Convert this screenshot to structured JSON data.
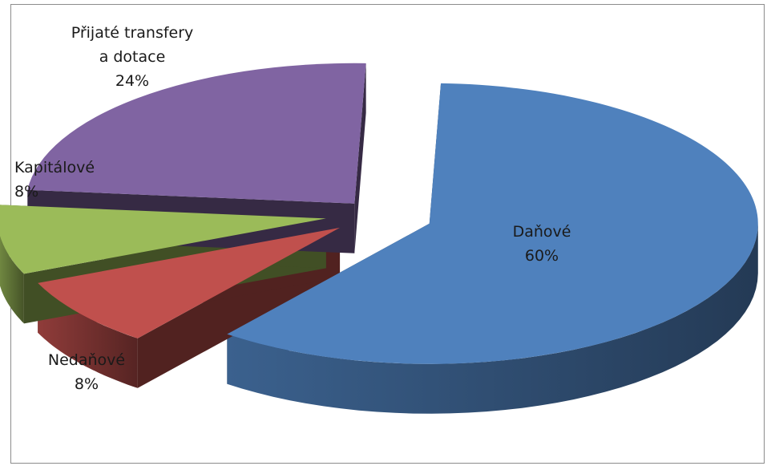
{
  "chart_data": {
    "type": "pie",
    "title": "",
    "slices": [
      {
        "name": "Daňové",
        "value": 60,
        "label": "60%",
        "color": "#4f81bd"
      },
      {
        "name": "Nedaňové",
        "value": 8,
        "label": "8%",
        "color": "#c0504d"
      },
      {
        "name": "Kapitálové",
        "value": 8,
        "label": "8%",
        "color": "#9bbb59"
      },
      {
        "name": "Přijaté transfery a dotace",
        "value": 24,
        "label": "24%",
        "color": "#8064a2"
      }
    ],
    "exploded": true,
    "three_d": true,
    "legend": "none"
  }
}
